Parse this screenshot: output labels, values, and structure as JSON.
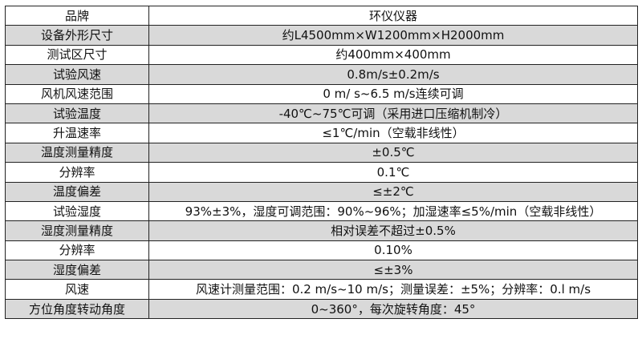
{
  "rows": [
    {
      "label": "品牌",
      "value": "环仪仪器"
    },
    {
      "label": "设备外形尺寸",
      "value": "约L4500mm×W1200mm×H2000mm"
    },
    {
      "label": "测试区尺寸",
      "value": "约400mm×400mm"
    },
    {
      "label": "试验风速",
      "value": "0.8m/s±0.2m/s"
    },
    {
      "label": "风机风速范围",
      "value": "0 m/ s~6.5 m/s连续可调"
    },
    {
      "label": "试验温度",
      "value": "-40℃~75℃可调（采用进口压缩机制冷）"
    },
    {
      "label": "升温速率",
      "value": "≤1℃/min（空载非线性）"
    },
    {
      "label": "温度测量精度",
      "value": "±0.5℃"
    },
    {
      "label": "分辨率",
      "value": "0.1℃"
    },
    {
      "label": "温度偏差",
      "value": "≤±2℃"
    },
    {
      "label": "试验湿度",
      "value": "93%±3%，湿度可调范围：90%~96%；加湿速率≤5%/min（空载非线性）"
    },
    {
      "label": "湿度测量精度",
      "value": "相对误差不超过±0.5%"
    },
    {
      "label": "分辨率",
      "value": "0.10%"
    },
    {
      "label": "湿度偏差",
      "value": "≤±3%"
    },
    {
      "label": "风速",
      "value": "风速计测量范围：0.2 m/s~10 m/s；测量误差：±5%；分辨率：0.l m/s"
    },
    {
      "label": "方位角度转动角度",
      "value": "0~360°，每次旋转角度：45°"
    }
  ],
  "colors": {
    "stripe": "#d9d9d9",
    "border": "#222222"
  }
}
